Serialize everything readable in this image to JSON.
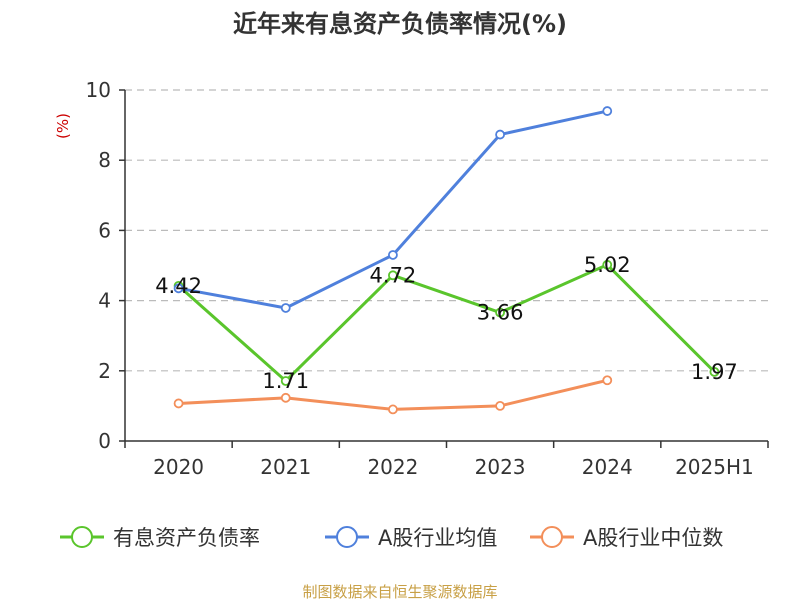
{
  "chart_data": {
    "type": "line",
    "title": "近年来有息资产负债率情况(%)",
    "ylabel": "(%)",
    "categories": [
      "2020",
      "2021",
      "2022",
      "2023",
      "2024",
      "2025H1"
    ],
    "ylim": [
      0,
      10
    ],
    "yticks": [
      "0",
      "2",
      "4",
      "6",
      "8",
      "10"
    ],
    "grid": true,
    "legend_position": "bottom",
    "series": [
      {
        "name": "有息资产负债率",
        "color": "#5ac52c",
        "values": [
          4.42,
          1.71,
          4.72,
          3.66,
          5.02,
          1.97
        ],
        "labels": [
          "4.42",
          "1.71",
          "4.72",
          "3.66",
          "5.02",
          "1.97"
        ]
      },
      {
        "name": "A股行业均值",
        "color": "#4f80dc",
        "values": [
          4.35,
          3.79,
          5.3,
          8.73,
          9.4,
          null
        ]
      },
      {
        "name": "A股行业中位数",
        "color": "#f38f5a",
        "values": [
          1.07,
          1.23,
          0.9,
          1.0,
          1.73,
          null
        ]
      }
    ],
    "source": "制图数据来自恒生聚源数据库",
    "colors": {
      "axis": "#333333",
      "grid": "#bbbbbb",
      "ylabel": "#cc0000",
      "source": "#c8a046"
    }
  }
}
